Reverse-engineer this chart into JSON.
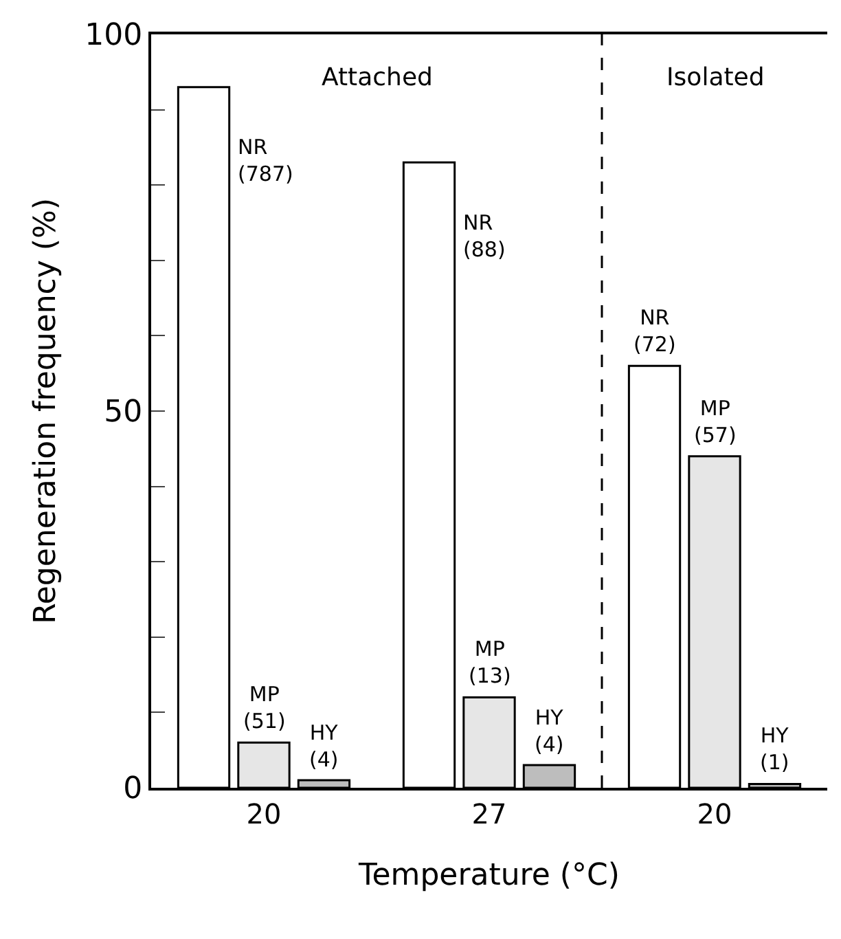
{
  "chart_data": {
    "type": "bar",
    "categories": [
      "20",
      "27",
      "20"
    ],
    "series": [
      {
        "color": "#ffffff",
        "values": [
          93,
          83,
          56
        ]
      },
      {
        "color": "#e6e6e6",
        "values": [
          6,
          12,
          44
        ]
      },
      {
        "color": "#bdbdbd",
        "values": [
          1,
          3,
          0.5
        ]
      }
    ],
    "xlabel": "Temperature (°C)",
    "ylabel": "Regeneration frequency (%)",
    "ylim": [
      0,
      100
    ],
    "yticks": [
      0,
      {
        "value": 10,
        "label": null
      },
      {
        "value": 20,
        "label": null
      },
      {
        "value": 30,
        "label": null
      },
      {
        "value": 40,
        "label": null
      },
      50,
      {
        "value": 60,
        "label": null
      },
      {
        "value": 70,
        "label": null
      },
      {
        "value": 80,
        "label": null
      },
      {
        "value": 90,
        "label": null
      },
      100
    ],
    "annotations": [
      "Attached",
      "Isolated",
      "NR\n(787)",
      "MP\n(51)",
      "HY\n(4)",
      "NR\n(88)",
      "MP\n(13)",
      "HY\n(4)",
      "NR\n(72)",
      "MP\n(57)",
      "HY\n(1)"
    ]
  }
}
